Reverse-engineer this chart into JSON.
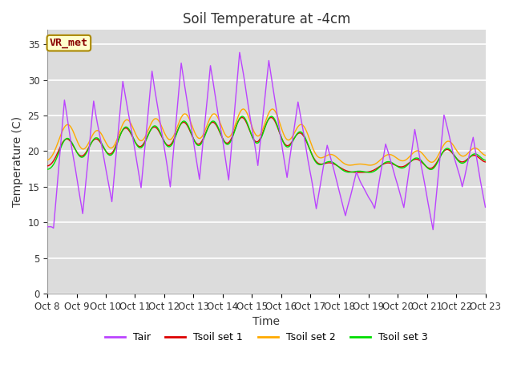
{
  "title": "Soil Temperature at -4cm",
  "xlabel": "Time",
  "ylabel": "Temperature (C)",
  "ylim": [
    0,
    37
  ],
  "yticks": [
    0,
    5,
    10,
    15,
    20,
    25,
    30,
    35
  ],
  "plot_bg_color": "#dcdcdc",
  "fig_bg_color": "#ffffff",
  "grid_color": "#ffffff",
  "line_colors": {
    "Tair": "#bb44ff",
    "Tsoil1": "#dd0000",
    "Tsoil2": "#ffaa00",
    "Tsoil3": "#00dd00"
  },
  "legend_labels": [
    "Tair",
    "Tsoil set 1",
    "Tsoil set 2",
    "Tsoil set 3"
  ],
  "annotation_text": "VR_met",
  "annotation_color": "#880000",
  "annotation_bg": "#ffffcc",
  "xtick_labels": [
    "Oct 8",
    "Oct 9",
    "Oct 10",
    "Oct 11",
    "Oct 12",
    "Oct 13",
    "Oct 14",
    "Oct 15",
    "Oct 16",
    "Oct 17",
    "Oct 18",
    "Oct 19",
    "Oct 20",
    "Oct 21",
    "Oct 22",
    "Oct 23"
  ],
  "title_fontsize": 12,
  "axis_fontsize": 10,
  "tick_fontsize": 8.5,
  "figwidth": 6.4,
  "figheight": 4.8,
  "dpi": 100
}
